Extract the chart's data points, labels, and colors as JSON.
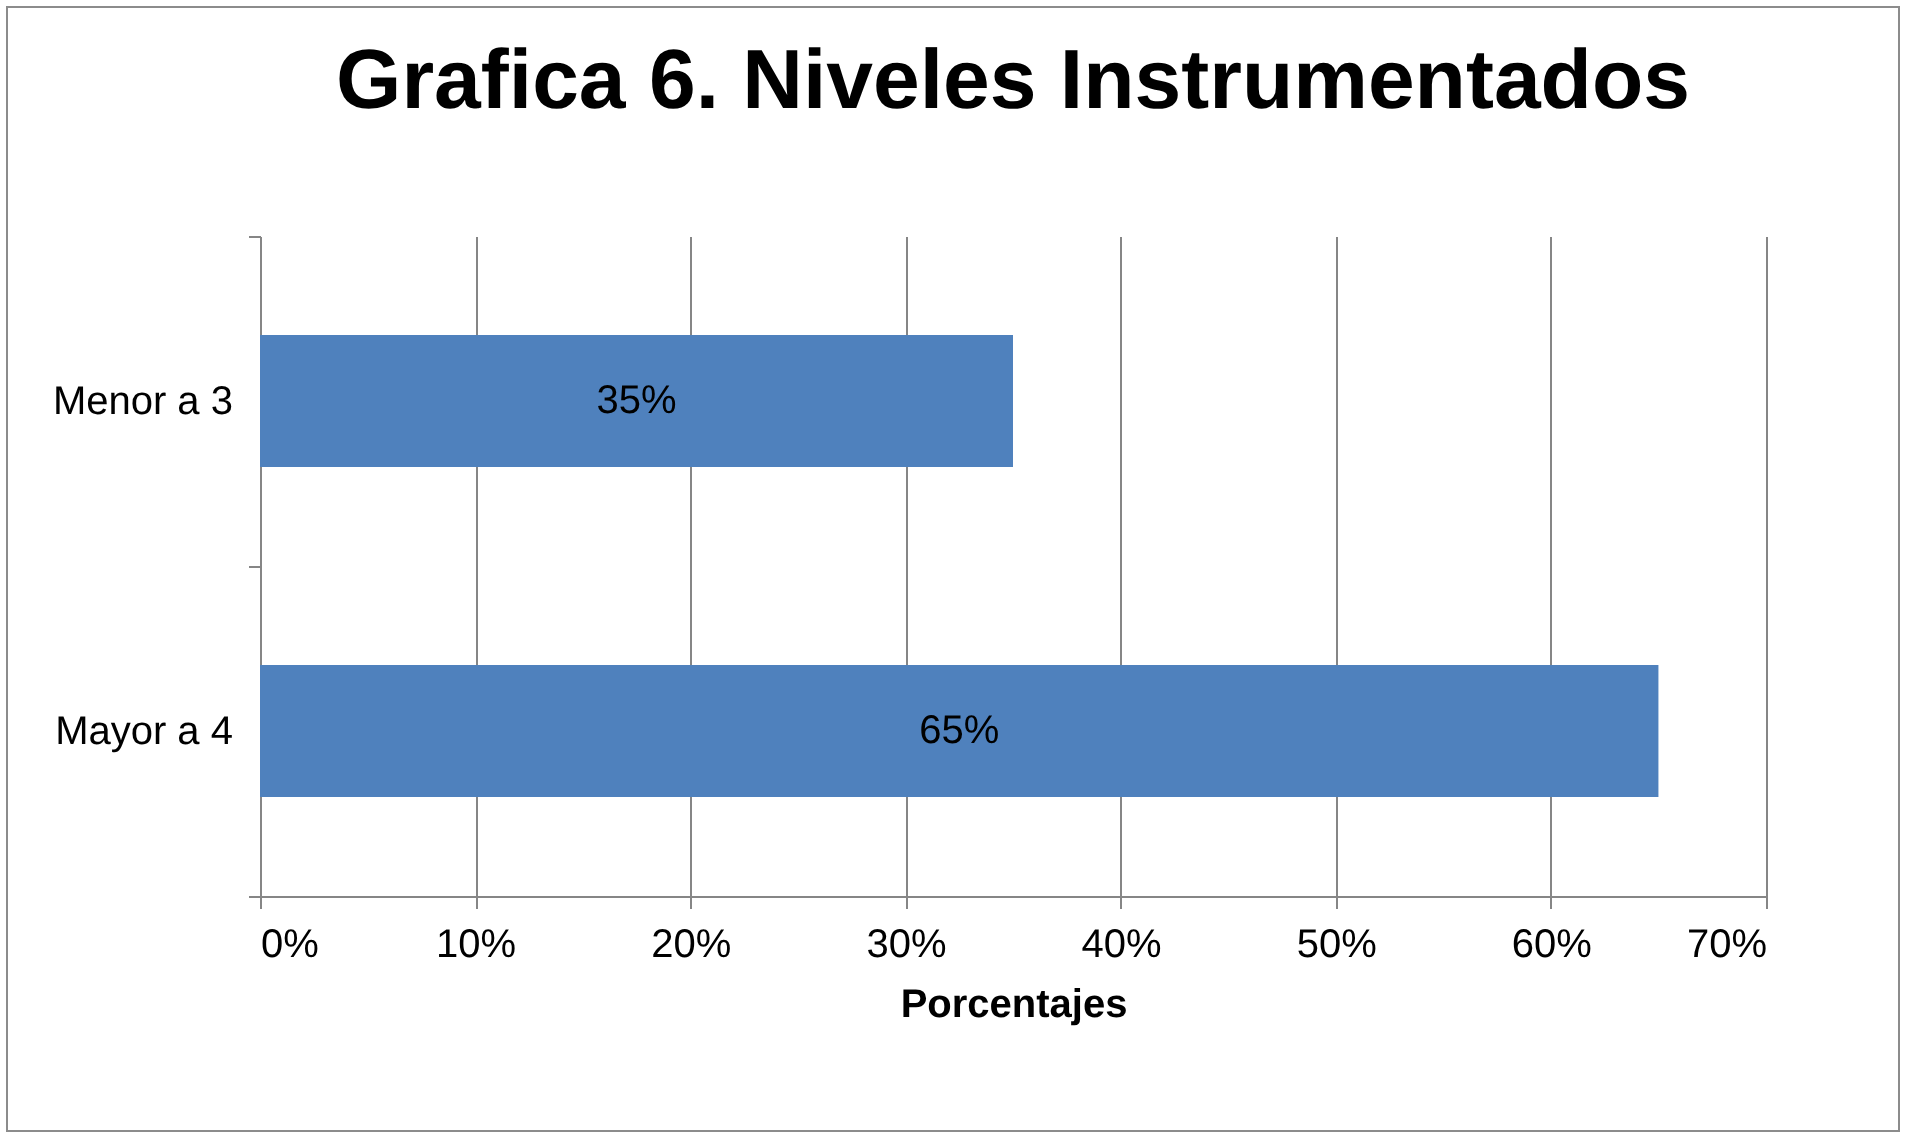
{
  "chart_data": {
    "type": "bar",
    "orientation": "horizontal",
    "title": "Grafica 6. Niveles Instrumentados",
    "xlabel": "Porcentajes",
    "categories": [
      "Menor a 3",
      "Mayor a 4"
    ],
    "values": [
      35,
      65
    ],
    "color": "#4f81bd",
    "value_labels": [
      "35%",
      "65%"
    ],
    "xlim": [
      0,
      70
    ],
    "xticks": [
      {
        "value": 0,
        "label": "0%"
      },
      {
        "value": 10,
        "label": "10%"
      },
      {
        "value": 20,
        "label": "20%"
      },
      {
        "value": 30,
        "label": "30%"
      },
      {
        "value": 40,
        "label": "40%"
      },
      {
        "value": 50,
        "label": "50%"
      },
      {
        "value": 60,
        "label": "60%"
      },
      {
        "value": 70,
        "label": "70%"
      }
    ],
    "grid": "x"
  }
}
